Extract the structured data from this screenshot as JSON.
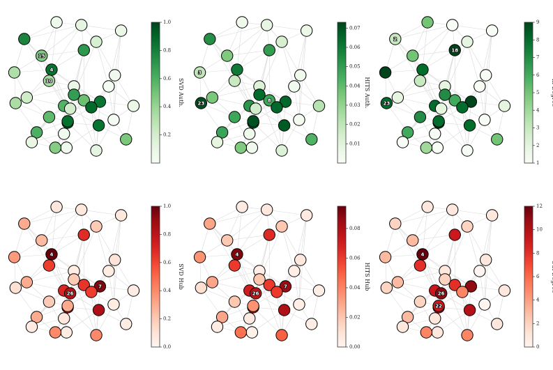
{
  "chart_data": {
    "type": "network",
    "nodes": [
      {
        "id": 0,
        "x": 0.44,
        "y": 0.96
      },
      {
        "id": 1,
        "x": 0.88,
        "y": 0.12
      },
      {
        "id": 2,
        "x": 0.1,
        "y": 0.18
      },
      {
        "id": 3,
        "x": 0.02,
        "y": 0.42
      },
      {
        "id": 4,
        "x": 0.32,
        "y": 0.4
      },
      {
        "id": 5,
        "x": 0.68,
        "y": 0.98
      },
      {
        "id": 6,
        "x": 0.12,
        "y": 0.6
      },
      {
        "id": 7,
        "x": 0.71,
        "y": 0.63
      },
      {
        "id": 8,
        "x": 0.58,
        "y": 0.62
      },
      {
        "id": 9,
        "x": 0.42,
        "y": 0.66
      },
      {
        "id": 10,
        "x": 0.3,
        "y": 0.48
      },
      {
        "id": 11,
        "x": 0.5,
        "y": 0.52
      },
      {
        "id": 12,
        "x": 0.45,
        "y": 0.78
      },
      {
        "id": 13,
        "x": 0.56,
        "y": 0.08
      },
      {
        "id": 14,
        "x": 0.2,
        "y": 0.85
      },
      {
        "id": 15,
        "x": 0.24,
        "y": 0.3
      },
      {
        "id": 16,
        "x": 0.82,
        "y": 0.76
      },
      {
        "id": 17,
        "x": 0.35,
        "y": 0.96
      },
      {
        "id": 18,
        "x": 0.58,
        "y": 0.26
      },
      {
        "id": 19,
        "x": 0.68,
        "y": 0.2
      },
      {
        "id": 20,
        "x": 0.83,
        "y": 0.44
      },
      {
        "id": 21,
        "x": 0.98,
        "y": 0.66
      },
      {
        "id": 22,
        "x": 0.45,
        "y": 0.77
      },
      {
        "id": 23,
        "x": 0.03,
        "y": 0.64
      },
      {
        "id": 24,
        "x": 0.5,
        "y": 0.58
      },
      {
        "id": 25,
        "x": 0.42,
        "y": 0.86
      },
      {
        "id": 26,
        "x": 0.47,
        "y": 0.68
      },
      {
        "id": 27,
        "x": 0.64,
        "y": 0.67
      },
      {
        "id": 28,
        "x": 0.36,
        "y": 0.06
      },
      {
        "id": 29,
        "x": 0.92,
        "y": 0.9
      },
      {
        "id": 30,
        "x": 0.16,
        "y": 0.92
      },
      {
        "id": 31,
        "x": 0.7,
        "y": 0.8
      },
      {
        "id": 32,
        "x": 0.3,
        "y": 0.74
      },
      {
        "id": 33,
        "x": 0.78,
        "y": 0.52
      }
    ],
    "edges": [
      [
        0,
        12
      ],
      [
        0,
        25
      ],
      [
        0,
        22
      ],
      [
        0,
        31
      ],
      [
        0,
        17
      ],
      [
        0,
        9
      ],
      [
        0,
        32
      ],
      [
        1,
        19
      ],
      [
        1,
        20
      ],
      [
        1,
        13
      ],
      [
        1,
        16
      ],
      [
        1,
        33
      ],
      [
        2,
        3
      ],
      [
        2,
        15
      ],
      [
        2,
        28
      ],
      [
        2,
        13
      ],
      [
        2,
        10
      ],
      [
        2,
        4
      ],
      [
        3,
        4
      ],
      [
        3,
        23
      ],
      [
        3,
        15
      ],
      [
        3,
        6
      ],
      [
        4,
        10
      ],
      [
        4,
        15
      ],
      [
        4,
        11
      ],
      [
        4,
        18
      ],
      [
        4,
        9
      ],
      [
        4,
        7
      ],
      [
        4,
        26
      ],
      [
        4,
        28
      ],
      [
        4,
        13
      ],
      [
        5,
        31
      ],
      [
        5,
        16
      ],
      [
        5,
        7
      ],
      [
        5,
        12
      ],
      [
        5,
        27
      ],
      [
        5,
        24
      ],
      [
        6,
        10
      ],
      [
        6,
        23
      ],
      [
        6,
        32
      ],
      [
        6,
        9
      ],
      [
        6,
        4
      ],
      [
        6,
        11
      ],
      [
        7,
        8
      ],
      [
        7,
        20
      ],
      [
        7,
        27
      ],
      [
        7,
        11
      ],
      [
        7,
        33
      ],
      [
        7,
        26
      ],
      [
        7,
        24
      ],
      [
        7,
        21
      ],
      [
        8,
        24
      ],
      [
        8,
        9
      ],
      [
        8,
        18
      ],
      [
        8,
        26
      ],
      [
        8,
        31
      ],
      [
        8,
        22
      ],
      [
        9,
        26
      ],
      [
        9,
        22
      ],
      [
        9,
        14
      ],
      [
        9,
        10
      ],
      [
        9,
        32
      ],
      [
        10,
        15
      ],
      [
        10,
        26
      ],
      [
        10,
        11
      ],
      [
        11,
        18
      ],
      [
        11,
        24
      ],
      [
        11,
        26
      ],
      [
        11,
        8
      ],
      [
        12,
        22
      ],
      [
        12,
        25
      ],
      [
        12,
        31
      ],
      [
        12,
        26
      ],
      [
        13,
        28
      ],
      [
        13,
        18
      ],
      [
        13,
        19
      ],
      [
        13,
        15
      ],
      [
        14,
        30
      ],
      [
        14,
        32
      ],
      [
        14,
        17
      ],
      [
        14,
        22
      ],
      [
        14,
        9
      ],
      [
        15,
        28
      ],
      [
        15,
        18
      ],
      [
        16,
        29
      ],
      [
        16,
        33
      ],
      [
        16,
        20
      ],
      [
        16,
        21
      ],
      [
        16,
        27
      ],
      [
        17,
        25
      ],
      [
        17,
        30
      ],
      [
        17,
        12
      ],
      [
        18,
        19
      ],
      [
        18,
        24
      ],
      [
        18,
        26
      ],
      [
        19,
        20
      ],
      [
        19,
        24
      ],
      [
        19,
        33
      ],
      [
        20,
        33
      ],
      [
        20,
        21
      ],
      [
        20,
        27
      ],
      [
        21,
        33
      ],
      [
        21,
        29
      ],
      [
        22,
        26
      ],
      [
        22,
        27
      ],
      [
        22,
        25
      ],
      [
        22,
        32
      ],
      [
        23,
        32
      ],
      [
        23,
        14
      ],
      [
        24,
        26
      ],
      [
        24,
        27
      ],
      [
        25,
        30
      ],
      [
        26,
        27
      ],
      [
        26,
        31
      ],
      [
        27,
        33
      ],
      [
        27,
        31
      ],
      [
        29,
        31
      ],
      [
        30,
        32
      ]
    ],
    "panels": [
      {
        "name": "SVD Auth.",
        "colormap": "Greens",
        "colorbar_label": "SVD Auth.",
        "range": [
          0,
          1.0
        ],
        "ticks": [
          0.2,
          0.4,
          0.6,
          0.8,
          1.0
        ],
        "tick_labels": [
          "0.2",
          "0.4",
          "0.6",
          "0.8",
          "1.0"
        ],
        "labels": [
          4,
          10,
          15
        ],
        "values": [
          0.05,
          0.08,
          0.78,
          0.33,
          0.85,
          0.12,
          0.22,
          0.84,
          0.52,
          0.58,
          0.35,
          0.08,
          0.9,
          0.12,
          0.6,
          0.46,
          0.02,
          0.45,
          0.7,
          0.18,
          0.05,
          0.08,
          0.86,
          0.34,
          0.68,
          0.04,
          0.2,
          0.88,
          0.05,
          0.48,
          0.1,
          0.85,
          0.55,
          0.02
        ]
      },
      {
        "name": "HITS Auth.",
        "colormap": "Greens",
        "colorbar_label": "HITS Auth.",
        "range": [
          0,
          0.073
        ],
        "ticks": [
          0.01,
          0.02,
          0.03,
          0.04,
          0.05,
          0.06,
          0.07
        ],
        "tick_labels": [
          "0.01",
          "0.02",
          "0.03",
          "0.04",
          "0.05",
          "0.06",
          "0.07"
        ],
        "labels": [
          3,
          8,
          23
        ],
        "values": [
          0.004,
          0.006,
          0.054,
          0.02,
          0.06,
          0.012,
          0.035,
          0.065,
          0.047,
          0.052,
          0.018,
          0.012,
          0.065,
          0.008,
          0.048,
          0.034,
          0.002,
          0.034,
          0.05,
          0.014,
          0.004,
          0.022,
          0.07,
          0.07,
          0.064,
          0.004,
          0.015,
          0.065,
          0.004,
          0.043,
          0.009,
          0.068,
          0.047,
          0.003
        ]
      },
      {
        "name": "In-Degree",
        "colormap": "Greens",
        "colorbar_label": "In-Degree",
        "range": [
          1,
          9
        ],
        "ticks": [
          1,
          2,
          3,
          4,
          5,
          6,
          7,
          8,
          9
        ],
        "tick_labels": [
          "1",
          "2",
          "3",
          "4",
          "5",
          "6",
          "7",
          "8",
          "9"
        ],
        "labels": [
          2,
          18,
          23
        ],
        "values": [
          1,
          1,
          3,
          9,
          8,
          1,
          2,
          9,
          6,
          8,
          3,
          2,
          9,
          1,
          6,
          5,
          1,
          4,
          9,
          2,
          1,
          2,
          8,
          8,
          7,
          1,
          2,
          8,
          5,
          5,
          1,
          8,
          7,
          1
        ]
      },
      {
        "name": "SVD Hub",
        "colormap": "Reds",
        "colorbar_label": "SVD Hub",
        "range": [
          0,
          1.0
        ],
        "ticks": [
          0.0,
          0.2,
          0.4,
          0.6,
          0.8,
          1.0
        ],
        "tick_labels": [
          "0.0",
          "0.2",
          "0.4",
          "0.6",
          "0.8",
          "1.0"
        ],
        "labels": [
          4,
          7,
          26
        ],
        "values": [
          0.05,
          0.08,
          0.3,
          0.35,
          1.0,
          0.4,
          0.3,
          0.95,
          0.65,
          0.7,
          0.62,
          0.05,
          0.82,
          0.08,
          0.3,
          0.25,
          0.05,
          0.4,
          0.68,
          0.2,
          0.1,
          0.05,
          0.3,
          0.12,
          0.2,
          0.08,
          0.82,
          0.62,
          0.08,
          0.05,
          0.06,
          0.85,
          0.2,
          0.05
        ]
      },
      {
        "name": "HITS Hub",
        "colormap": "Reds",
        "colorbar_label": "HITS Hub",
        "range": [
          0,
          0.095
        ],
        "ticks": [
          0.0,
          0.02,
          0.04,
          0.06,
          0.08
        ],
        "tick_labels": [
          "0.00",
          "0.02",
          "0.04",
          "0.06",
          "0.08"
        ],
        "labels": [
          4,
          7,
          26
        ],
        "values": [
          0.003,
          0.006,
          0.03,
          0.035,
          0.09,
          0.05,
          0.03,
          0.085,
          0.06,
          0.07,
          0.06,
          0.004,
          0.075,
          0.008,
          0.03,
          0.02,
          0.004,
          0.045,
          0.065,
          0.02,
          0.008,
          0.004,
          0.035,
          0.012,
          0.02,
          0.006,
          0.075,
          0.06,
          0.006,
          0.004,
          0.005,
          0.08,
          0.02,
          0.004
        ]
      },
      {
        "name": "Out-Degree",
        "colormap": "Reds",
        "colorbar_label": "Out-Degree",
        "range": [
          0,
          12
        ],
        "ticks": [
          0,
          2,
          4,
          6,
          8,
          10,
          12
        ],
        "tick_labels": [
          "0",
          "2",
          "4",
          "6",
          "8",
          "10",
          "12"
        ],
        "labels": [
          4,
          22,
          26
        ],
        "values": [
          1,
          1,
          2,
          3,
          12,
          5,
          3,
          11,
          8,
          9,
          8,
          1,
          10,
          1,
          3,
          3,
          0,
          5,
          9,
          2,
          1,
          1,
          9,
          2,
          2,
          1,
          11,
          5,
          1,
          1,
          1,
          10,
          2,
          0
        ]
      }
    ]
  }
}
